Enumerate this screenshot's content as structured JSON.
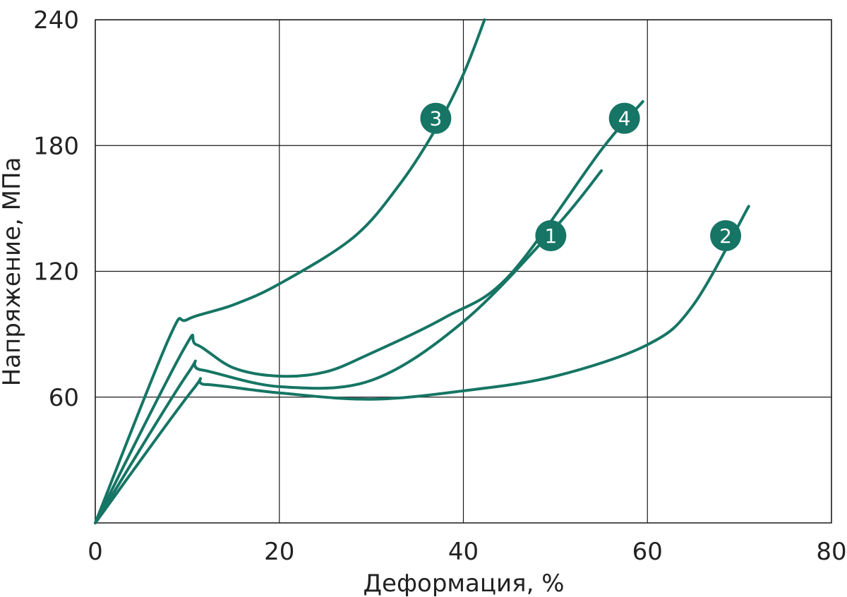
{
  "chart_data": {
    "type": "line",
    "xlabel": "Деформация, %",
    "ylabel": "Напряжение, МПа",
    "xlim": [
      0,
      80
    ],
    "ylim": [
      0,
      240
    ],
    "x_ticks": [
      "0",
      "20",
      "40",
      "60",
      "80"
    ],
    "y_ticks": [
      "60",
      "120",
      "180",
      "240"
    ],
    "grid": true,
    "line_color": "#167565",
    "series": [
      {
        "name": "1",
        "label_at": [
          49.5,
          137
        ],
        "points": [
          [
            0,
            0
          ],
          [
            10,
            71
          ],
          [
            11.5,
            73
          ],
          [
            20,
            65
          ],
          [
            30,
            68
          ],
          [
            40,
            96
          ],
          [
            50,
            141
          ],
          [
            55,
            168
          ]
        ]
      },
      {
        "name": "2",
        "label_at": [
          68.5,
          137
        ],
        "points": [
          [
            0,
            0
          ],
          [
            10.5,
            63
          ],
          [
            12,
            66
          ],
          [
            20,
            62
          ],
          [
            30,
            59
          ],
          [
            40,
            63
          ],
          [
            50,
            70
          ],
          [
            60,
            85
          ],
          [
            65,
            104
          ],
          [
            71,
            151
          ]
        ]
      },
      {
        "name": "3",
        "label_at": [
          37,
          193
        ],
        "points": [
          [
            0,
            0
          ],
          [
            8,
            88
          ],
          [
            10,
            97
          ],
          [
            15,
            104
          ],
          [
            20,
            114
          ],
          [
            28,
            136
          ],
          [
            33,
            161
          ],
          [
            37,
            188
          ],
          [
            40,
            214
          ],
          [
            42.3,
            240
          ]
        ]
      },
      {
        "name": "4",
        "label_at": [
          57.5,
          193
        ],
        "points": [
          [
            0,
            0
          ],
          [
            9.5,
            82
          ],
          [
            11,
            85
          ],
          [
            15,
            74
          ],
          [
            20,
            70
          ],
          [
            25,
            72
          ],
          [
            30,
            81
          ],
          [
            38,
            98
          ],
          [
            45,
            118
          ],
          [
            55,
            178
          ],
          [
            59.5,
            201
          ]
        ]
      }
    ]
  }
}
